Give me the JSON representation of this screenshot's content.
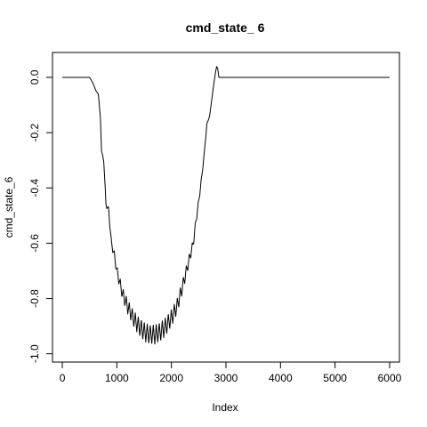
{
  "chart_data": {
    "type": "line",
    "title": "cmd_state_ 6",
    "xlabel": "Index",
    "ylabel": "cmd_state_6",
    "xlim": [
      -180,
      6180
    ],
    "ylim": [
      -1.03,
      0.09
    ],
    "xticks": [
      0,
      1000,
      2000,
      3000,
      4000,
      5000,
      6000
    ],
    "xtick_labels": [
      "0",
      "1000",
      "2000",
      "3000",
      "4000",
      "5000",
      "6000"
    ],
    "yticks": [
      0.0,
      -0.2,
      -0.4,
      -0.6,
      -0.8,
      -1.0
    ],
    "ytick_labels": [
      "0.0",
      "-0.2",
      "-0.4",
      "-0.6",
      "-0.8",
      "-1.0"
    ],
    "grid": false,
    "legend": "none",
    "line_color": "#000000",
    "oscillation": {
      "period": 55,
      "start": 650,
      "end": 2700,
      "max_amplitude": 0.035
    },
    "series": [
      {
        "x": [
          0,
          500,
          560,
          620,
          660,
          700,
          720,
          760,
          800,
          850,
          900,
          950,
          1000,
          1100,
          1200,
          1300,
          1400,
          1500,
          1600,
          1700,
          1800,
          1900,
          2000,
          2100,
          2200,
          2300,
          2400,
          2450,
          2500,
          2550,
          2600,
          2650,
          2700,
          2740,
          2780,
          2810,
          2830,
          2850,
          2870,
          3000,
          4000,
          5000,
          6000
        ],
        "y": [
          0.0,
          0.0,
          -0.02,
          -0.05,
          -0.06,
          -0.15,
          -0.27,
          -0.3,
          -0.46,
          -0.48,
          -0.6,
          -0.64,
          -0.7,
          -0.78,
          -0.83,
          -0.87,
          -0.9,
          -0.92,
          -0.93,
          -0.93,
          -0.92,
          -0.9,
          -0.87,
          -0.83,
          -0.76,
          -0.68,
          -0.6,
          -0.52,
          -0.45,
          -0.37,
          -0.28,
          -0.17,
          -0.14,
          -0.08,
          -0.02,
          0.02,
          0.04,
          0.03,
          0.0,
          0.0,
          0.0,
          0.0,
          0.0
        ]
      }
    ]
  }
}
